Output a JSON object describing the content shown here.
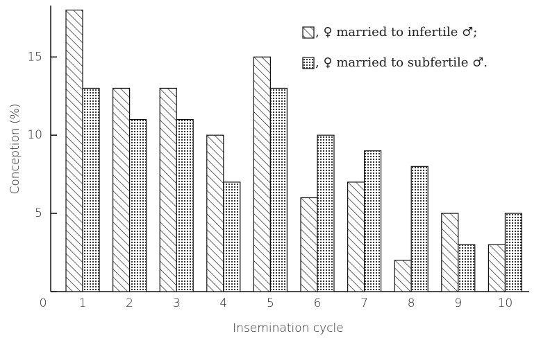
{
  "chart_data": {
    "type": "bar",
    "x_label": "Insemination cycle",
    "y_label": "Conception (%)",
    "categories": [
      "1",
      "2",
      "3",
      "4",
      "5",
      "6",
      "7",
      "8",
      "9",
      "10"
    ],
    "series": [
      {
        "name": ", ♀ married to infertile ♂;",
        "color": "#111111",
        "pattern": "hatch",
        "values": [
          18,
          13,
          13,
          10,
          15,
          6,
          7,
          2,
          5,
          3
        ]
      },
      {
        "name": ", ♀ married to subfertile ♂.",
        "color": "#111111",
        "pattern": "dots",
        "values": [
          13,
          11,
          11,
          7,
          13,
          10,
          9,
          8,
          3,
          5
        ]
      }
    ],
    "ylim": [
      0,
      18.2
    ],
    "yticks": [
      0,
      5,
      10,
      15
    ],
    "grid": false,
    "legend": "top-right"
  }
}
